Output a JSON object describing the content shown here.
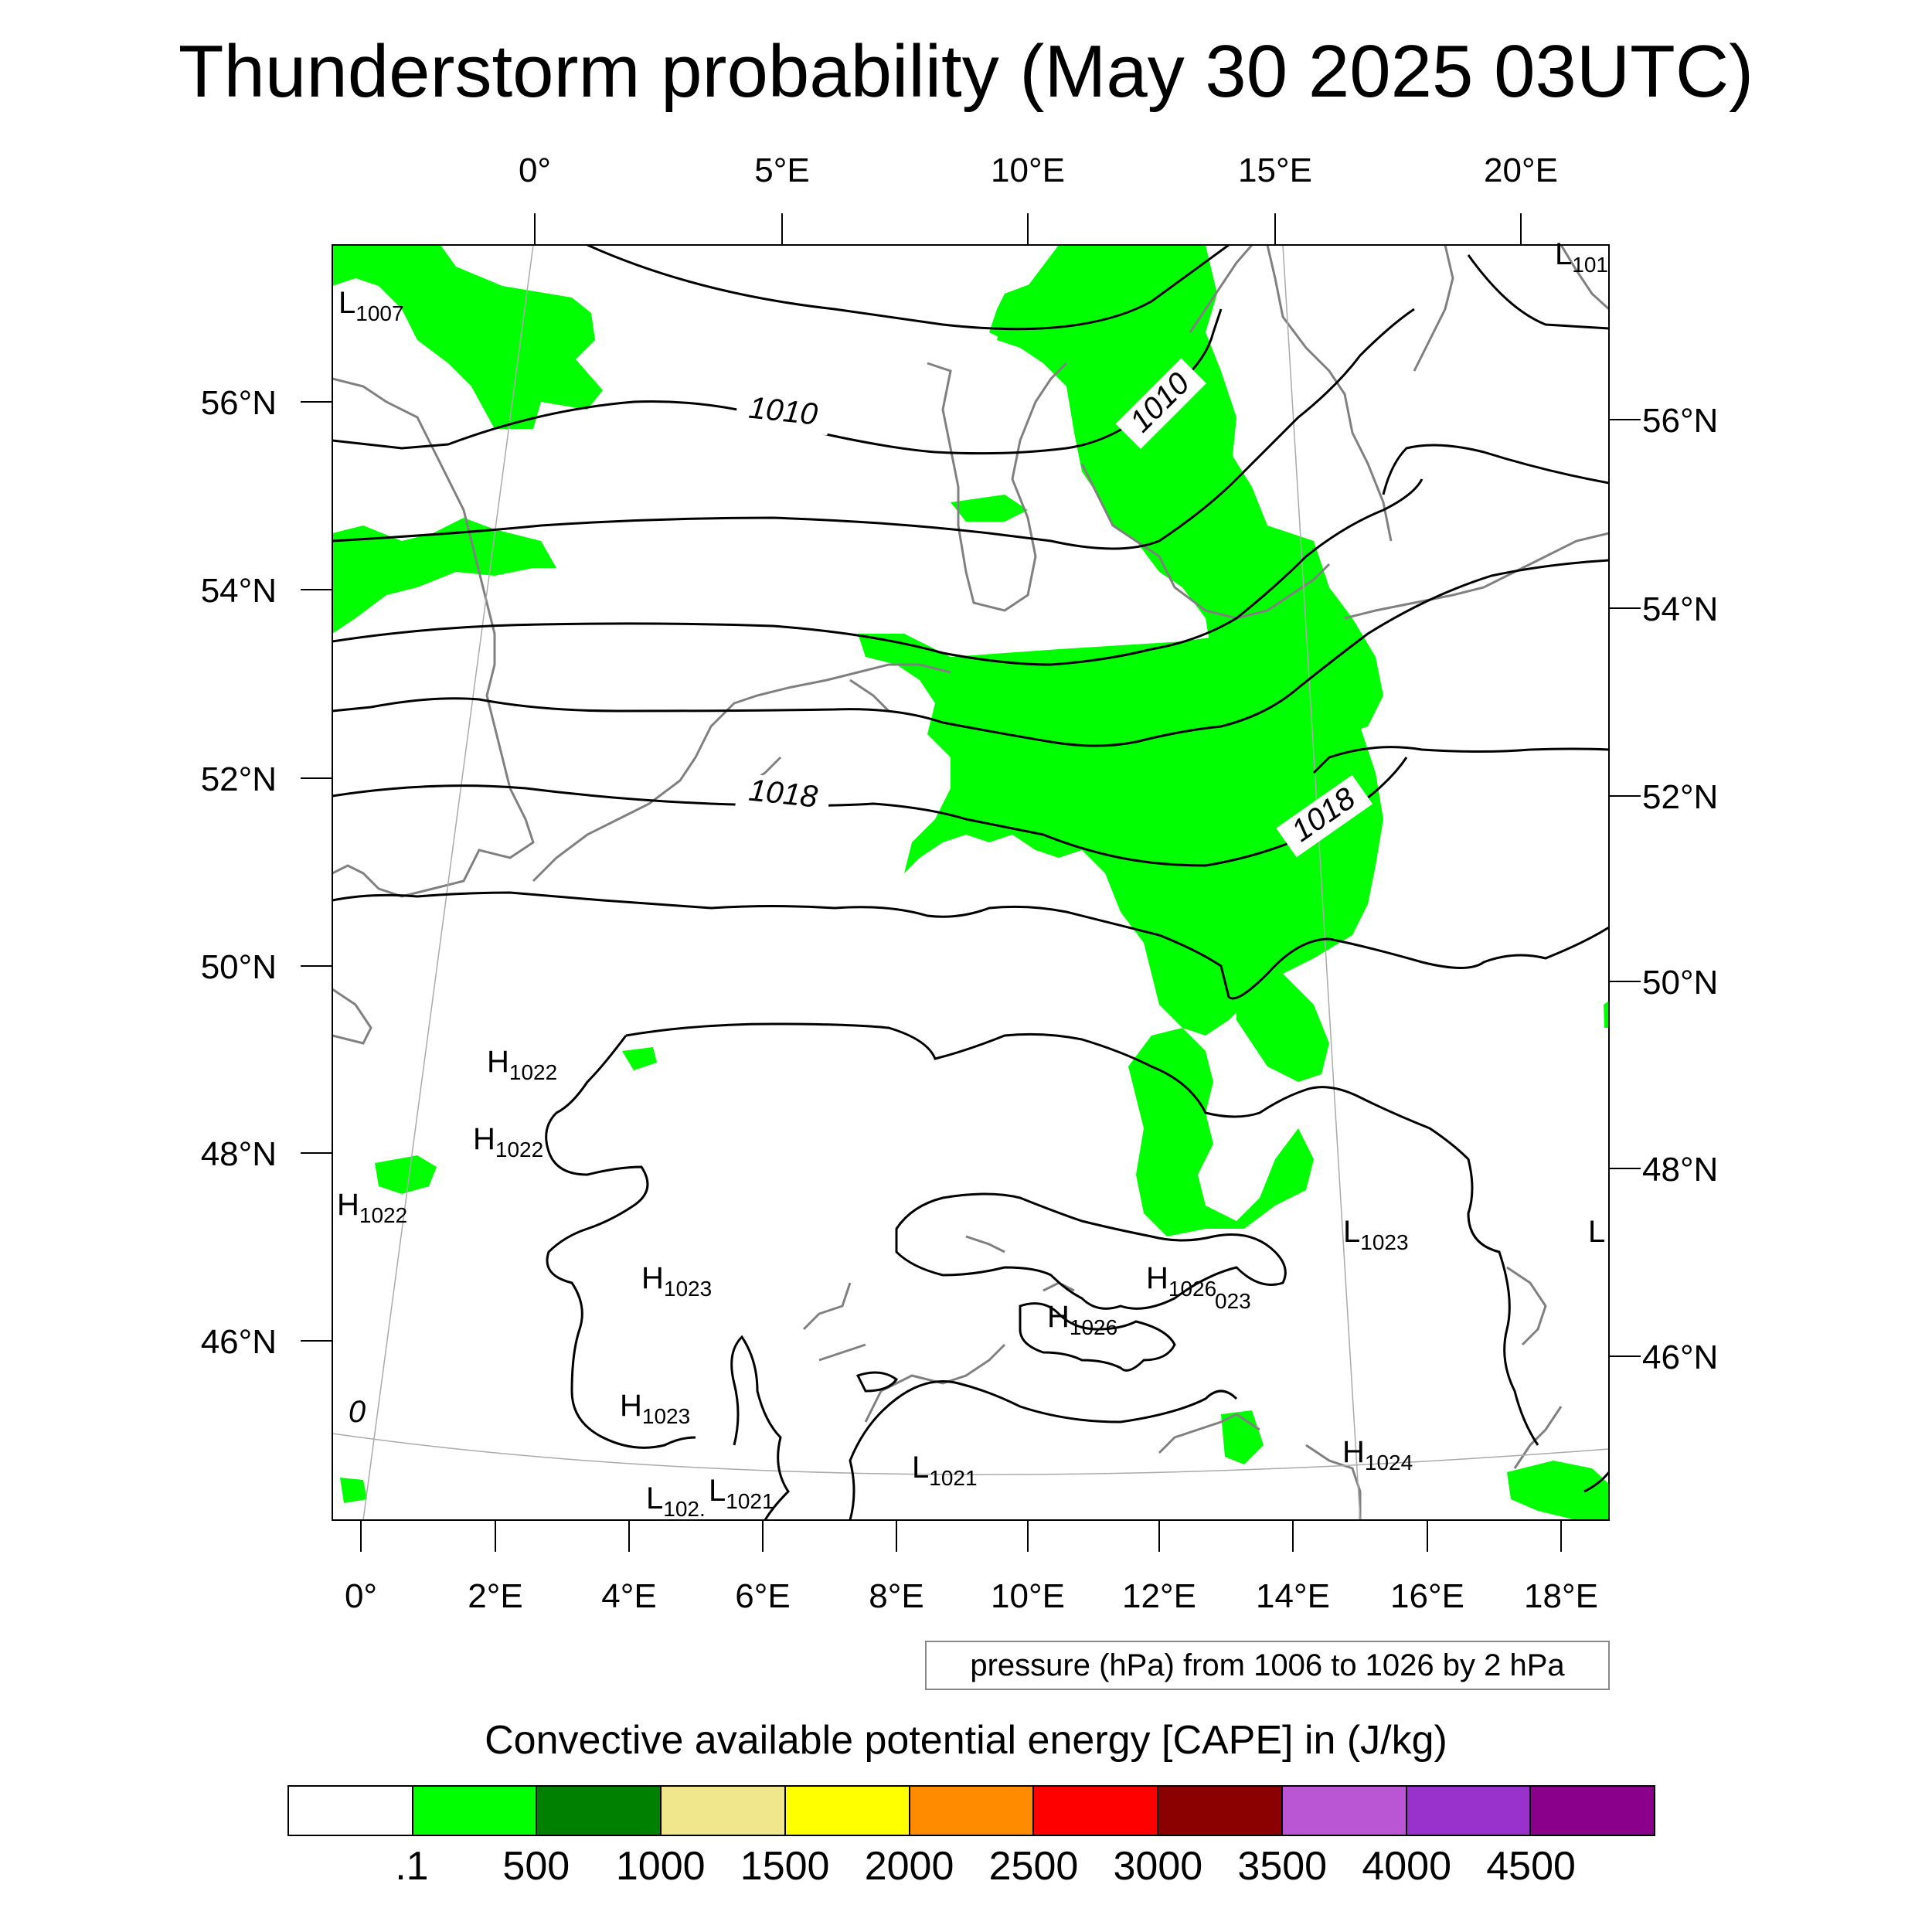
{
  "title": "Thunderstorm probability (May 30 2025 03UTC)",
  "top_lon_labels": [
    "0°",
    "5°E",
    "10°E",
    "15°E",
    "20°E"
  ],
  "bottom_lon_labels": [
    "0°",
    "2°E",
    "4°E",
    "6°E",
    "8°E",
    "10°E",
    "12°E",
    "14°E",
    "16°E",
    "18°E"
  ],
  "left_lat_labels": [
    "56°N",
    "54°N",
    "52°N",
    "50°N",
    "48°N",
    "46°N"
  ],
  "right_lat_labels": [
    "56°N",
    "54°N",
    "52°N",
    "50°N",
    "48°N",
    "46°N"
  ],
  "contour_labels": [
    "1010",
    "1010",
    "1018",
    "1018",
    "0"
  ],
  "pressure_centers": [
    {
      "type": "L",
      "value": "1007"
    },
    {
      "type": "L",
      "value": "101"
    },
    {
      "type": "H",
      "value": "1022"
    },
    {
      "type": "H",
      "value": "1022"
    },
    {
      "type": "H",
      "value": "1022"
    },
    {
      "type": "H",
      "value": "1023"
    },
    {
      "type": "H",
      "value": "1026"
    },
    {
      "type": "",
      "value": "023"
    },
    {
      "type": "H",
      "value": "1026"
    },
    {
      "type": "L",
      "value": "1023"
    },
    {
      "type": "L",
      "value": ""
    },
    {
      "type": "H",
      "value": "1023"
    },
    {
      "type": "L",
      "value": "1021"
    },
    {
      "type": "L",
      "value": "1021"
    },
    {
      "type": "L",
      "value": "102."
    },
    {
      "type": "H",
      "value": "1024"
    }
  ],
  "info_box": "pressure (hPa) from 1006 to 1026 by 2 hPa",
  "colorbar": {
    "title": "Convective available potential energy [CAPE] in (J/kg)",
    "colors": [
      "#ffffff",
      "#00ff00",
      "#008000",
      "#f0e68c",
      "#ffff00",
      "#ff8c00",
      "#ff0000",
      "#8b0000",
      "#ba55d3",
      "#9932cc",
      "#8b008b"
    ],
    "labels": [
      ".1",
      "500",
      "1000",
      "1500",
      "2000",
      "2500",
      "3000",
      "3500",
      "4000",
      "4500"
    ]
  },
  "colors": {
    "cape_fill": "#00ff00",
    "coastline": "#808080",
    "isobar": "#000000",
    "graticule": "#aaaaaa"
  }
}
